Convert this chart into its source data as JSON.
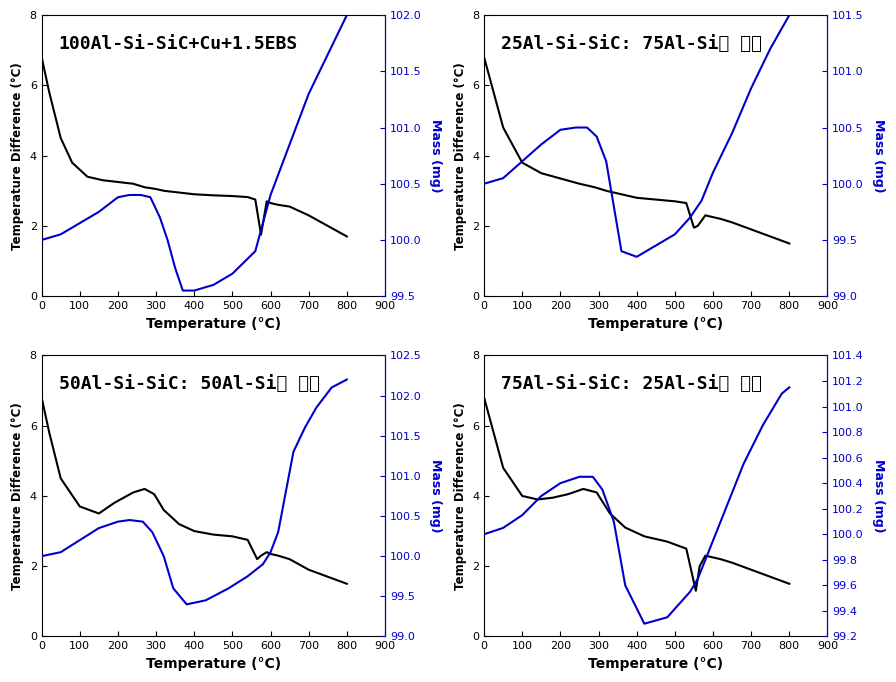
{
  "panels": [
    {
      "title": "100Al-Si-SiC+Cu+1.5EBS",
      "title_fontsize": 13,
      "xlim": [
        0,
        900
      ],
      "ylim_left": [
        0,
        8
      ],
      "ylim_right": [
        99.5,
        102.0
      ],
      "yticks_right": [
        99.5,
        100.0,
        100.5,
        101.0,
        101.5,
        102.0
      ],
      "black_x": [
        0,
        20,
        50,
        80,
        120,
        160,
        200,
        240,
        270,
        300,
        320,
        360,
        400,
        450,
        500,
        540,
        560,
        575,
        590,
        600,
        620,
        650,
        700,
        750,
        800
      ],
      "black_y": [
        6.8,
        5.8,
        4.5,
        3.8,
        3.4,
        3.3,
        3.25,
        3.2,
        3.1,
        3.05,
        3.0,
        2.95,
        2.9,
        2.87,
        2.85,
        2.82,
        2.75,
        1.75,
        2.7,
        2.65,
        2.6,
        2.55,
        2.3,
        2.0,
        1.7
      ],
      "blue_x": [
        0,
        50,
        100,
        150,
        200,
        230,
        260,
        285,
        310,
        330,
        350,
        370,
        400,
        450,
        500,
        530,
        560,
        600,
        650,
        700,
        750,
        800
      ],
      "blue_y": [
        100.0,
        100.05,
        100.15,
        100.25,
        100.38,
        100.4,
        100.4,
        100.38,
        100.2,
        100.0,
        99.75,
        99.55,
        99.55,
        99.6,
        99.7,
        99.8,
        99.9,
        100.4,
        100.85,
        101.3,
        101.65,
        102.0
      ]
    },
    {
      "title": "25Al-Si-SiC: 75Al-Si계 분말",
      "title_fontsize": 13,
      "xlim": [
        0,
        900
      ],
      "ylim_left": [
        0,
        8
      ],
      "ylim_right": [
        99.0,
        101.5
      ],
      "yticks_right": [
        99.0,
        99.5,
        100.0,
        100.5,
        101.0,
        101.5
      ],
      "black_x": [
        0,
        20,
        50,
        100,
        150,
        200,
        250,
        290,
        320,
        360,
        400,
        450,
        500,
        530,
        550,
        560,
        580,
        600,
        620,
        650,
        700,
        750,
        800
      ],
      "black_y": [
        6.8,
        6.0,
        4.8,
        3.8,
        3.5,
        3.35,
        3.2,
        3.1,
        3.0,
        2.9,
        2.8,
        2.75,
        2.7,
        2.65,
        1.95,
        2.0,
        2.3,
        2.25,
        2.2,
        2.1,
        1.9,
        1.7,
        1.5
      ],
      "blue_x": [
        0,
        50,
        100,
        150,
        200,
        240,
        270,
        295,
        320,
        340,
        360,
        400,
        450,
        500,
        540,
        570,
        600,
        650,
        700,
        750,
        800
      ],
      "blue_y": [
        100.0,
        100.05,
        100.2,
        100.35,
        100.48,
        100.5,
        100.5,
        100.42,
        100.2,
        99.8,
        99.4,
        99.35,
        99.45,
        99.55,
        99.7,
        99.85,
        100.1,
        100.45,
        100.85,
        101.2,
        101.5
      ]
    },
    {
      "title": "50Al-Si-SiC: 50Al-Si계 분말",
      "title_fontsize": 13,
      "xlim": [
        0,
        900
      ],
      "ylim_left": [
        0,
        8
      ],
      "ylim_right": [
        99.0,
        102.5
      ],
      "yticks_right": [
        99.0,
        99.5,
        100.0,
        100.5,
        101.0,
        101.5,
        102.0,
        102.5
      ],
      "black_x": [
        0,
        20,
        50,
        100,
        150,
        190,
        240,
        270,
        295,
        320,
        360,
        400,
        450,
        500,
        540,
        565,
        575,
        590,
        600,
        620,
        650,
        700,
        750,
        800
      ],
      "black_y": [
        6.8,
        5.8,
        4.5,
        3.7,
        3.5,
        3.8,
        4.1,
        4.2,
        4.05,
        3.6,
        3.2,
        3.0,
        2.9,
        2.85,
        2.75,
        2.2,
        2.3,
        2.4,
        2.35,
        2.3,
        2.2,
        1.9,
        1.7,
        1.5
      ],
      "blue_x": [
        0,
        50,
        100,
        150,
        200,
        230,
        265,
        290,
        320,
        345,
        380,
        430,
        490,
        540,
        580,
        600,
        620,
        640,
        660,
        690,
        720,
        760,
        800
      ],
      "blue_y": [
        100.0,
        100.05,
        100.2,
        100.35,
        100.43,
        100.45,
        100.43,
        100.3,
        100.0,
        99.6,
        99.4,
        99.45,
        99.6,
        99.75,
        99.9,
        100.05,
        100.3,
        100.8,
        101.3,
        101.6,
        101.85,
        102.1,
        102.2
      ]
    },
    {
      "title": "75Al-Si-SiC: 25Al-Si계 분말",
      "title_fontsize": 13,
      "xlim": [
        0,
        900
      ],
      "ylim_left": [
        0,
        8
      ],
      "ylim_right": [
        99.2,
        101.4
      ],
      "yticks_right": [
        99.2,
        99.4,
        99.6,
        99.8,
        100.0,
        100.2,
        100.4,
        100.6,
        100.8,
        101.0,
        101.2,
        101.4
      ],
      "black_x": [
        0,
        20,
        50,
        100,
        140,
        180,
        220,
        260,
        295,
        330,
        370,
        420,
        480,
        530,
        555,
        565,
        580,
        600,
        620,
        650,
        700,
        750,
        800
      ],
      "black_y": [
        6.8,
        6.0,
        4.8,
        4.0,
        3.9,
        3.95,
        4.05,
        4.2,
        4.1,
        3.5,
        3.1,
        2.85,
        2.7,
        2.5,
        1.3,
        2.0,
        2.3,
        2.25,
        2.2,
        2.1,
        1.9,
        1.7,
        1.5
      ],
      "blue_x": [
        0,
        50,
        100,
        150,
        200,
        250,
        285,
        310,
        340,
        370,
        420,
        480,
        540,
        560,
        580,
        600,
        640,
        680,
        730,
        780,
        800
      ],
      "blue_y": [
        100.0,
        100.05,
        100.15,
        100.3,
        100.4,
        100.45,
        100.45,
        100.35,
        100.1,
        99.6,
        99.3,
        99.35,
        99.55,
        99.65,
        99.8,
        99.95,
        100.25,
        100.55,
        100.85,
        101.1,
        101.15
      ]
    }
  ],
  "xlabel": "Temperature (°C)",
  "ylabel_left": "Temperature Difference (°C)",
  "ylabel_right": "Mass (mg)",
  "black_color": "#000000",
  "blue_color": "#0000cc",
  "linewidth": 1.5,
  "background_color": "#ffffff",
  "yticks_left": [
    0,
    2,
    4,
    6,
    8
  ],
  "xticks": [
    0,
    100,
    200,
    300,
    400,
    500,
    600,
    700,
    800,
    900
  ]
}
